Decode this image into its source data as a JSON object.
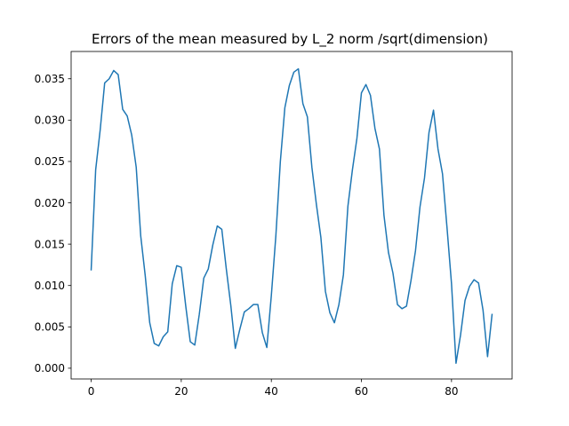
{
  "chart_data": {
    "type": "line",
    "title": "Errors of the mean measured by L_2 norm /sqrt(dimension)",
    "xlabel": "",
    "ylabel": "",
    "xlim": [
      -4.45,
      93.45
    ],
    "ylim": [
      -0.0013,
      0.0383
    ],
    "x_ticks": [
      0,
      20,
      40,
      60,
      80
    ],
    "x_tick_labels": [
      "0",
      "20",
      "40",
      "60",
      "80"
    ],
    "y_ticks": [
      0.0,
      0.005,
      0.01,
      0.015,
      0.02,
      0.025,
      0.03,
      0.035
    ],
    "y_tick_labels": [
      "0.000",
      "0.005",
      "0.010",
      "0.015",
      "0.020",
      "0.025",
      "0.030",
      "0.035"
    ],
    "grid": false,
    "series": [
      {
        "color": "#1f77b4",
        "x": [
          0,
          1,
          2,
          3,
          4,
          5,
          6,
          7,
          8,
          9,
          10,
          11,
          12,
          13,
          14,
          15,
          16,
          17,
          18,
          19,
          20,
          21,
          22,
          23,
          24,
          25,
          26,
          27,
          28,
          29,
          30,
          31,
          32,
          33,
          34,
          35,
          36,
          37,
          38,
          39,
          40,
          41,
          42,
          43,
          44,
          45,
          46,
          47,
          48,
          49,
          50,
          51,
          52,
          53,
          54,
          55,
          56,
          57,
          58,
          59,
          60,
          61,
          62,
          63,
          64,
          65,
          66,
          67,
          68,
          69,
          70,
          71,
          72,
          73,
          74,
          75,
          76,
          77,
          78,
          79,
          80,
          81,
          82,
          83,
          84,
          85,
          86,
          87,
          88,
          89
        ],
        "y": [
          0.0119,
          0.024,
          0.0288,
          0.0345,
          0.035,
          0.036,
          0.0355,
          0.0313,
          0.0305,
          0.0282,
          0.0243,
          0.016,
          0.0112,
          0.0055,
          0.003,
          0.0027,
          0.0038,
          0.0044,
          0.0102,
          0.0124,
          0.0122,
          0.0075,
          0.0032,
          0.0028,
          0.0065,
          0.0109,
          0.012,
          0.0149,
          0.0172,
          0.0168,
          0.012,
          0.0076,
          0.0024,
          0.0047,
          0.0068,
          0.0072,
          0.0077,
          0.0077,
          0.0043,
          0.0025,
          0.0088,
          0.016,
          0.025,
          0.0315,
          0.0342,
          0.0358,
          0.0362,
          0.032,
          0.0304,
          0.0243,
          0.0198,
          0.0158,
          0.0093,
          0.0067,
          0.0055,
          0.0077,
          0.0113,
          0.0196,
          0.024,
          0.0278,
          0.0333,
          0.0343,
          0.033,
          0.029,
          0.0265,
          0.0185,
          0.014,
          0.0115,
          0.0077,
          0.0072,
          0.0075,
          0.0106,
          0.0142,
          0.0195,
          0.023,
          0.0285,
          0.0312,
          0.0265,
          0.0235,
          0.017,
          0.0102,
          0.0006,
          0.004,
          0.0082,
          0.0099,
          0.0107,
          0.0103,
          0.007,
          0.0014,
          0.0065
        ]
      }
    ]
  }
}
